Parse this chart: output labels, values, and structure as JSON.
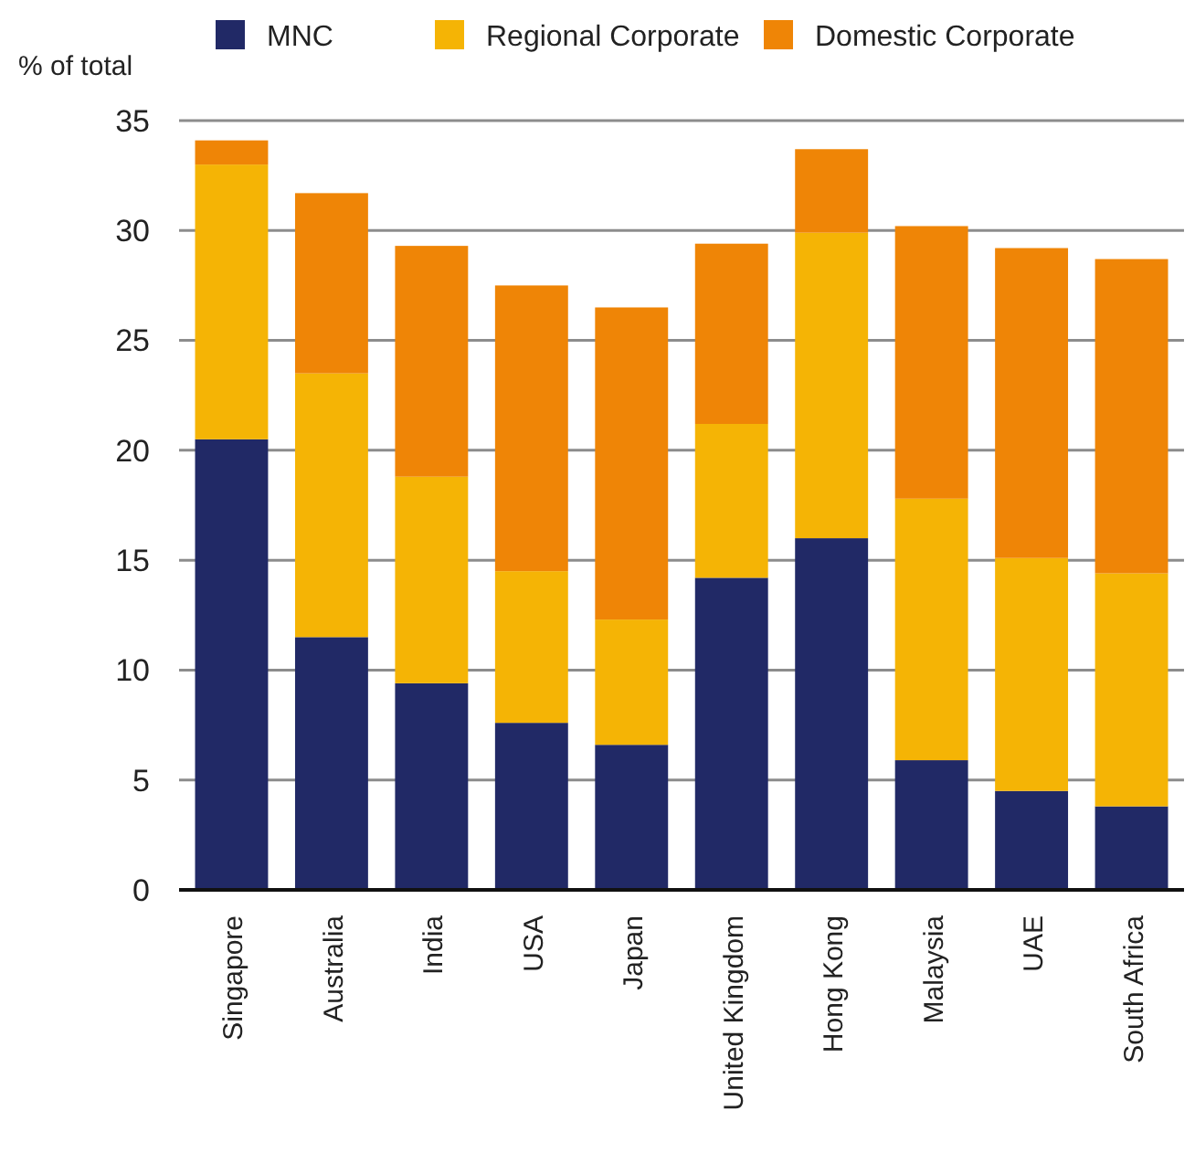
{
  "chart_data": {
    "type": "bar",
    "stacked": true,
    "ylabel": "% of total",
    "categories": [
      "Singapore",
      "Australia",
      "India",
      "USA",
      "Japan",
      "United Kingdom",
      "Hong Kong",
      "Malaysia",
      "UAE",
      "South Africa"
    ],
    "series": [
      {
        "name": "MNC",
        "color": "#212966",
        "values": [
          20.5,
          11.5,
          9.4,
          7.6,
          6.6,
          14.2,
          16.0,
          5.9,
          4.5,
          3.8
        ]
      },
      {
        "name": "Regional Corporate",
        "color": "#f5b405",
        "values": [
          12.5,
          12.0,
          9.4,
          6.9,
          5.7,
          7.0,
          13.9,
          11.9,
          10.6,
          10.6
        ]
      },
      {
        "name": "Domestic Corporate",
        "color": "#ef8506",
        "values": [
          1.1,
          8.2,
          10.5,
          13.0,
          14.2,
          8.2,
          3.8,
          12.4,
          14.1,
          14.3
        ]
      }
    ],
    "ylim": [
      0,
      35
    ],
    "yticks": [
      0,
      5,
      10,
      15,
      20,
      25,
      30,
      35
    ],
    "grid": "y",
    "legend": "top"
  }
}
